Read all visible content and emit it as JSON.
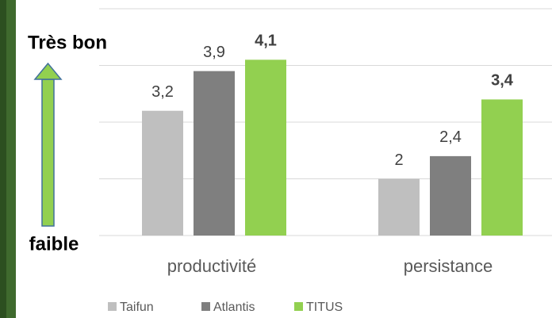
{
  "chart_data": {
    "type": "bar",
    "categories": [
      "productivité",
      "persistance"
    ],
    "series": [
      {
        "name": "Taifun",
        "color": "#bfbfbf",
        "values": [
          3.2,
          2
        ],
        "value_labels": [
          "3,2",
          "2"
        ]
      },
      {
        "name": "Atlantis",
        "color": "#7f7f7f",
        "values": [
          3.9,
          2.4
        ],
        "value_labels": [
          "3,9",
          "2,4"
        ]
      },
      {
        "name": "TITUS",
        "color": "#92d050",
        "values": [
          4.1,
          3.4
        ],
        "value_labels": [
          "4,1",
          "3,4"
        ]
      }
    ],
    "ylim": [
      1,
      5
    ],
    "yticks": [
      1,
      2,
      3,
      4,
      5
    ],
    "grid": true,
    "annotations": [
      "Très bon",
      "faible"
    ],
    "legend": "bottom"
  }
}
